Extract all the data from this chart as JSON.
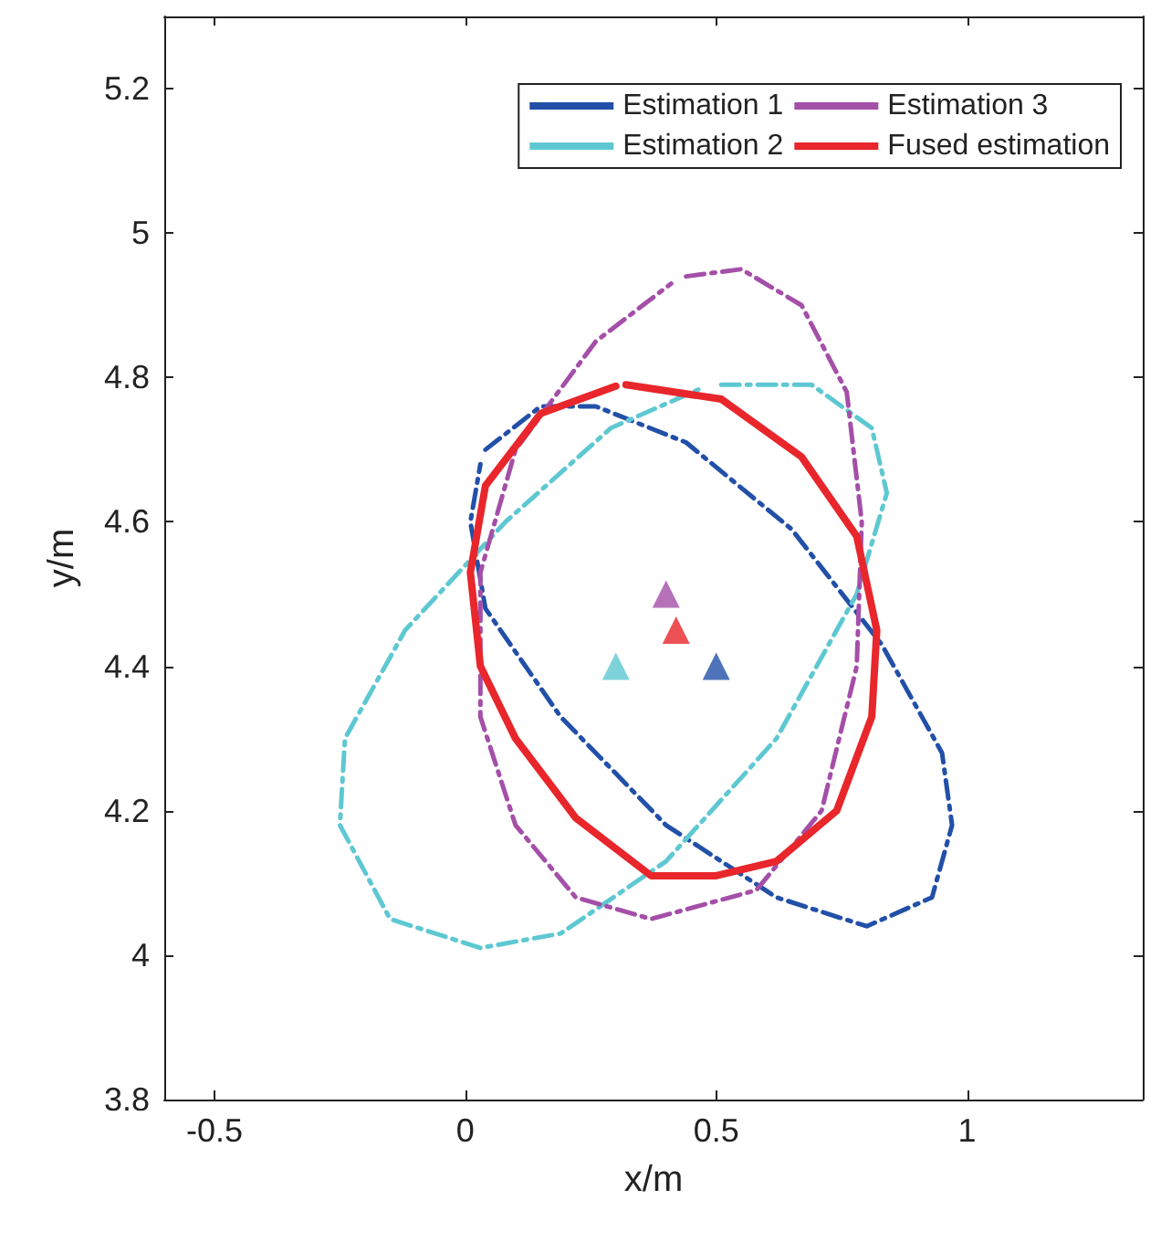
{
  "chart_data": {
    "type": "line",
    "xlabel": "x/m",
    "ylabel": "y/m",
    "xlim": [
      -0.6,
      1.35
    ],
    "ylim": [
      3.8,
      5.3
    ],
    "xticks": [
      -0.5,
      0,
      0.5,
      1
    ],
    "yticks": [
      3.8,
      4,
      4.2,
      4.4,
      4.6,
      4.8,
      5,
      5.2
    ],
    "grid": false,
    "legend": "top right",
    "marker": "none",
    "series": [
      {
        "name": "Estimation 1",
        "color": "#2250a8",
        "line_style": "dashed",
        "x": [
          0.04,
          0.15,
          0.26,
          0.44,
          0.65,
          0.83,
          0.95,
          0.97,
          0.93,
          0.8,
          0.62,
          0.4,
          0.19,
          0.04,
          0.01,
          0.03
        ],
        "values": [
          4.7,
          4.76,
          4.76,
          4.71,
          4.59,
          4.43,
          4.28,
          4.18,
          4.08,
          4.04,
          4.08,
          4.18,
          4.33,
          4.48,
          4.6,
          4.68
        ]
      },
      {
        "name": "Estimation 2",
        "color": "#5ec8d2",
        "line_style": "dashed",
        "x": [
          0.51,
          0.69,
          0.81,
          0.84,
          0.78,
          0.62,
          0.4,
          0.19,
          0.03,
          -0.15,
          -0.25,
          -0.24,
          -0.12,
          0.08,
          0.29,
          0.47
        ],
        "values": [
          4.79,
          4.79,
          4.73,
          4.64,
          4.5,
          4.3,
          4.13,
          4.03,
          4.01,
          4.05,
          4.18,
          4.3,
          4.45,
          4.6,
          4.73,
          4.785
        ]
      },
      {
        "name": "Estimation 3",
        "color": "#a44fa8",
        "line_style": "dashed",
        "x": [
          0.44,
          0.55,
          0.67,
          0.76,
          0.79,
          0.78,
          0.71,
          0.58,
          0.37,
          0.22,
          0.1,
          0.03,
          0.03,
          0.1,
          0.26,
          0.41
        ],
        "values": [
          4.94,
          4.95,
          4.9,
          4.78,
          4.6,
          4.4,
          4.2,
          4.09,
          4.05,
          4.08,
          4.18,
          4.33,
          4.53,
          4.7,
          4.85,
          4.93
        ]
      },
      {
        "name": "Fused estimation",
        "color": "#e8262b",
        "line_style": "solid",
        "x": [
          0.32,
          0.51,
          0.67,
          0.78,
          0.82,
          0.81,
          0.74,
          0.62,
          0.5,
          0.37,
          0.22,
          0.1,
          0.03,
          0.01,
          0.04,
          0.15,
          0.3
        ],
        "values": [
          4.79,
          4.77,
          4.69,
          4.58,
          4.45,
          4.33,
          4.2,
          4.13,
          4.11,
          4.11,
          4.19,
          4.3,
          4.4,
          4.53,
          4.65,
          4.75,
          4.788
        ]
      },
      {
        "type": "scatter",
        "marker": "triangle",
        "color": "#2250a8",
        "x": [
          0.5
        ],
        "values": [
          4.4
        ]
      },
      {
        "type": "scatter",
        "marker": "triangle",
        "color": "#5ec8d2",
        "x": [
          0.3
        ],
        "values": [
          4.4
        ]
      },
      {
        "type": "scatter",
        "marker": "triangle",
        "color": "#a44fa8",
        "x": [
          0.4
        ],
        "values": [
          4.5
        ]
      },
      {
        "type": "scatter",
        "marker": "triangle",
        "color": "#e8262b",
        "x": [
          0.42
        ],
        "values": [
          4.45
        ]
      }
    ]
  }
}
